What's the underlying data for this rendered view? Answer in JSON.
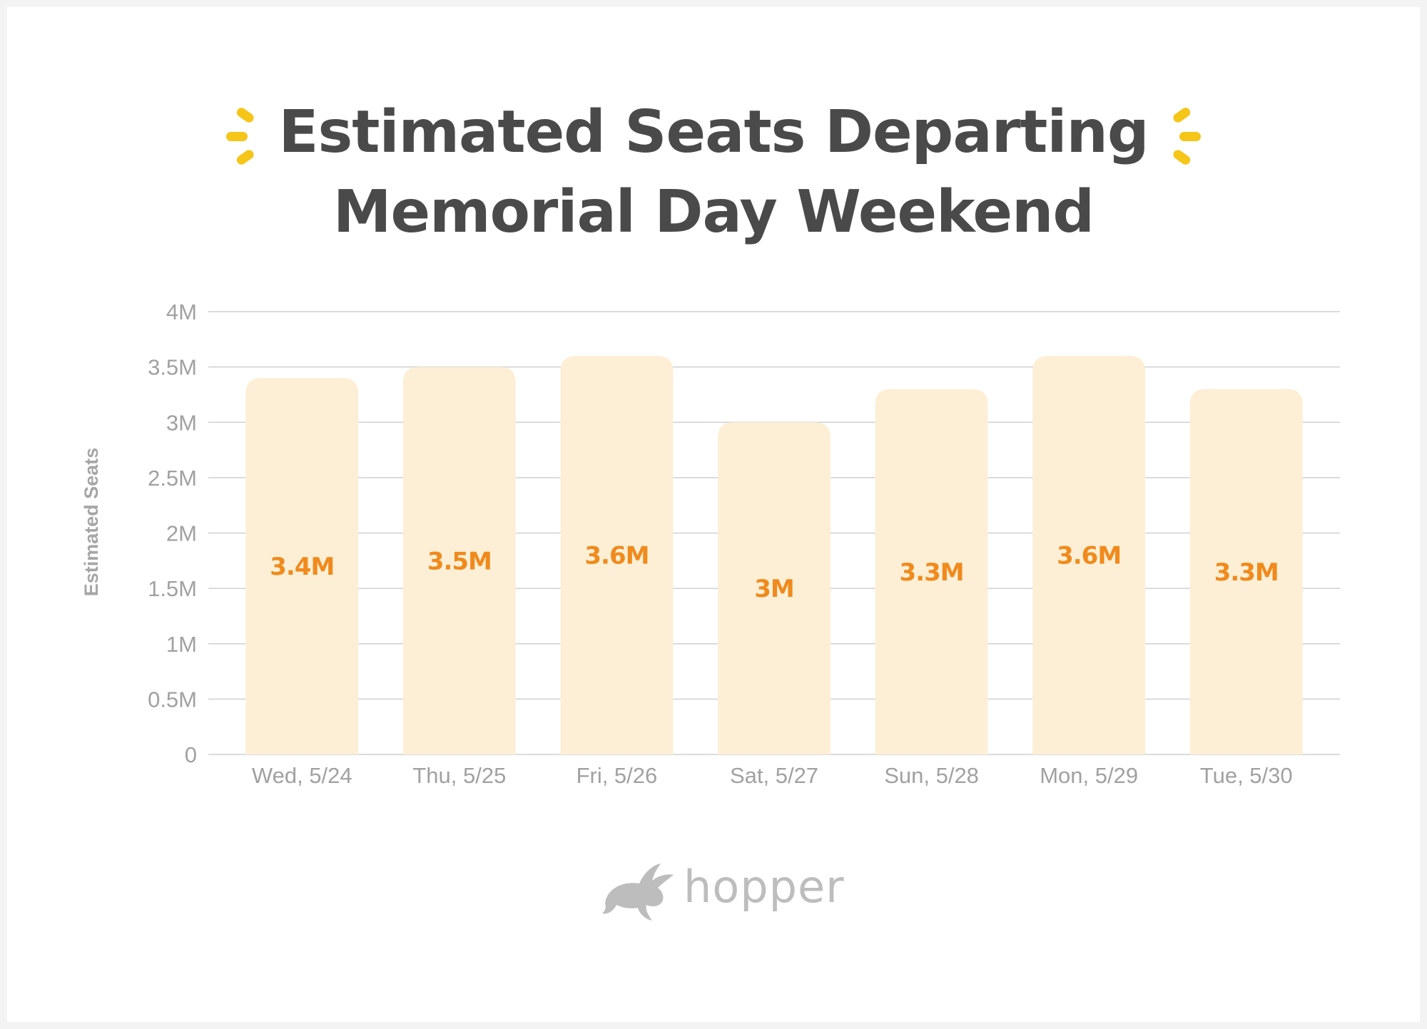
{
  "title": {
    "line1": "Estimated Seats Departing",
    "line2": "Memorial Day Weekend"
  },
  "colors": {
    "accent": "#f5c518",
    "bar": "#fdefd6",
    "value_label": "#f08a1c",
    "title": "#4a4a4a",
    "axis_text": "#a1a1a1",
    "grid": "#d0d0d0"
  },
  "logo": {
    "icon": "rabbit-icon",
    "text": "hopper"
  },
  "chart_data": {
    "type": "bar",
    "title": "Estimated Seats Departing Memorial Day Weekend",
    "xlabel": "",
    "ylabel": "Estimated Seats",
    "categories": [
      "Wed, 5/24",
      "Thu, 5/25",
      "Fri, 5/26",
      "Sat, 5/27",
      "Sun, 5/28",
      "Mon, 5/29",
      "Tue, 5/30"
    ],
    "values": [
      3.4,
      3.5,
      3.6,
      3.0,
      3.3,
      3.6,
      3.3
    ],
    "value_labels": [
      "3.4M",
      "3.5M",
      "3.6M",
      "3M",
      "3.3M",
      "3.6M",
      "3.3M"
    ],
    "unit": "M",
    "ylim": [
      0,
      4
    ],
    "yticks": [
      0,
      0.5,
      1,
      1.5,
      2,
      2.5,
      3,
      3.5,
      4
    ],
    "ytick_labels": [
      "0",
      "0.5M",
      "1M",
      "1.5M",
      "2M",
      "2.5M",
      "3M",
      "3.5M",
      "4M"
    ],
    "grid": true,
    "legend": "none"
  }
}
